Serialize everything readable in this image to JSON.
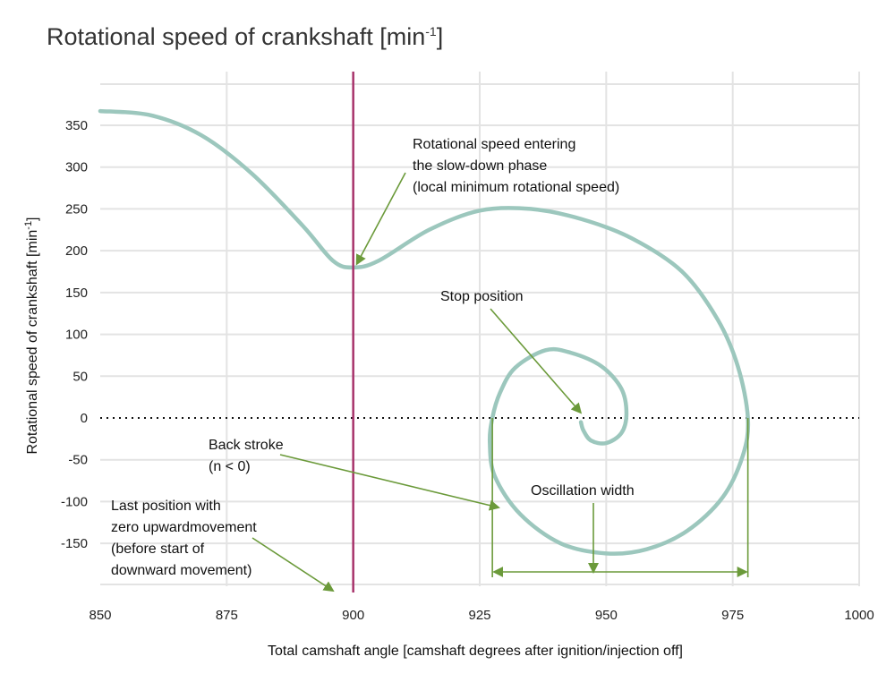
{
  "title": "Rotational speed of crankshaft [min",
  "title_sup": "-1",
  "title_end": "]",
  "chart_data": {
    "type": "line",
    "title": "Rotational speed of crankshaft [min-1]",
    "xlabel": "Total camshaft angle [camshaft degrees after ignition/injection off]",
    "ylabel": "Rotational speed of crankshaft [min",
    "ylabel_sup": "-1",
    "ylabel_end": "]",
    "xlim": [
      850,
      1000
    ],
    "ylim": [
      -200,
      400
    ],
    "x_ticks": [
      850,
      875,
      900,
      925,
      950,
      975,
      1000
    ],
    "y_ticks": [
      350,
      300,
      250,
      200,
      150,
      100,
      50,
      0,
      -50,
      -100,
      -150
    ],
    "grid": true,
    "vertical_marker": {
      "x": 900,
      "color": "#a8336b"
    },
    "zero_line": {
      "y": 0,
      "style": "dotted"
    },
    "series": [
      {
        "color": "#9cc7bd",
        "points": [
          [
            850,
            367
          ],
          [
            860,
            362
          ],
          [
            870,
            338
          ],
          [
            880,
            292
          ],
          [
            890,
            230
          ],
          [
            896,
            188
          ],
          [
            900,
            180
          ],
          [
            905,
            188
          ],
          [
            915,
            225
          ],
          [
            925,
            248
          ],
          [
            935,
            250
          ],
          [
            945,
            238
          ],
          [
            955,
            215
          ],
          [
            965,
            175
          ],
          [
            972,
            118
          ],
          [
            976,
            62
          ],
          [
            978,
            0
          ],
          [
            977,
            -45
          ],
          [
            973,
            -95
          ],
          [
            966,
            -135
          ],
          [
            958,
            -157
          ],
          [
            950,
            -162
          ],
          [
            941,
            -150
          ],
          [
            933,
            -115
          ],
          [
            928,
            -70
          ],
          [
            927,
            -30
          ],
          [
            927.5,
            0
          ],
          [
            929,
            30
          ],
          [
            932,
            60
          ],
          [
            938,
            81
          ],
          [
            943,
            78
          ],
          [
            949,
            62
          ],
          [
            953,
            35
          ],
          [
            954,
            5
          ],
          [
            953,
            -18
          ],
          [
            950,
            -30
          ],
          [
            947,
            -27
          ],
          [
            945.5,
            -15
          ],
          [
            945,
            -5
          ]
        ]
      }
    ],
    "annotations": [
      {
        "lines": [
          "Rotational speed entering",
          "the slow-down phase",
          "(local minimum rotational speed)"
        ]
      },
      {
        "lines": [
          "Stop position"
        ]
      },
      {
        "lines": [
          "Back stroke",
          "(n < 0)"
        ]
      },
      {
        "lines": [
          "Oscillation width"
        ]
      },
      {
        "lines": [
          "Last position with",
          "zero upwardmovement",
          "(before start of",
          "downward movement)"
        ]
      }
    ],
    "oscillation_range": [
      927.5,
      978
    ],
    "annotation_color": "#6b9a3a"
  }
}
